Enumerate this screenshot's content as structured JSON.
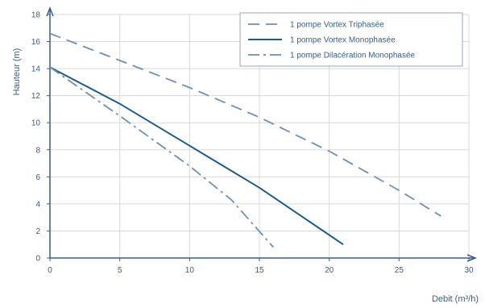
{
  "chart_data": {
    "type": "line",
    "xlabel": "Debit (m³/h)",
    "ylabel": "Hauteur (m)",
    "xlim": [
      0,
      30
    ],
    "ylim": [
      0,
      18
    ],
    "xticks": [
      0,
      5,
      10,
      15,
      20,
      25,
      30
    ],
    "yticks": [
      0,
      2,
      4,
      6,
      8,
      10,
      12,
      14,
      16,
      18
    ],
    "grid": true,
    "legend_position": "top-right",
    "colors": {
      "series": [
        "#6f8fb3",
        "#1f5a86",
        "#6f8fb3"
      ],
      "axis": "#3a5c86",
      "grid": "#d9d9d9"
    },
    "series": [
      {
        "name": "1 pompe Vortex Triphasée",
        "style": "dashed",
        "x": [
          0,
          5,
          10,
          15,
          20,
          25,
          28
        ],
        "y": [
          16.6,
          14.6,
          12.6,
          10.4,
          7.9,
          5.0,
          3.1
        ]
      },
      {
        "name": "1 pompe Vortex Monophasée",
        "style": "solid",
        "x": [
          0,
          5,
          10,
          15,
          21
        ],
        "y": [
          14.1,
          11.4,
          8.3,
          5.2,
          1.0
        ]
      },
      {
        "name": "1 pompe Dilacération Monophasée",
        "style": "dashdot",
        "x": [
          0,
          5,
          10,
          13,
          16
        ],
        "y": [
          14.1,
          10.5,
          6.8,
          4.3,
          0.8
        ]
      }
    ]
  }
}
